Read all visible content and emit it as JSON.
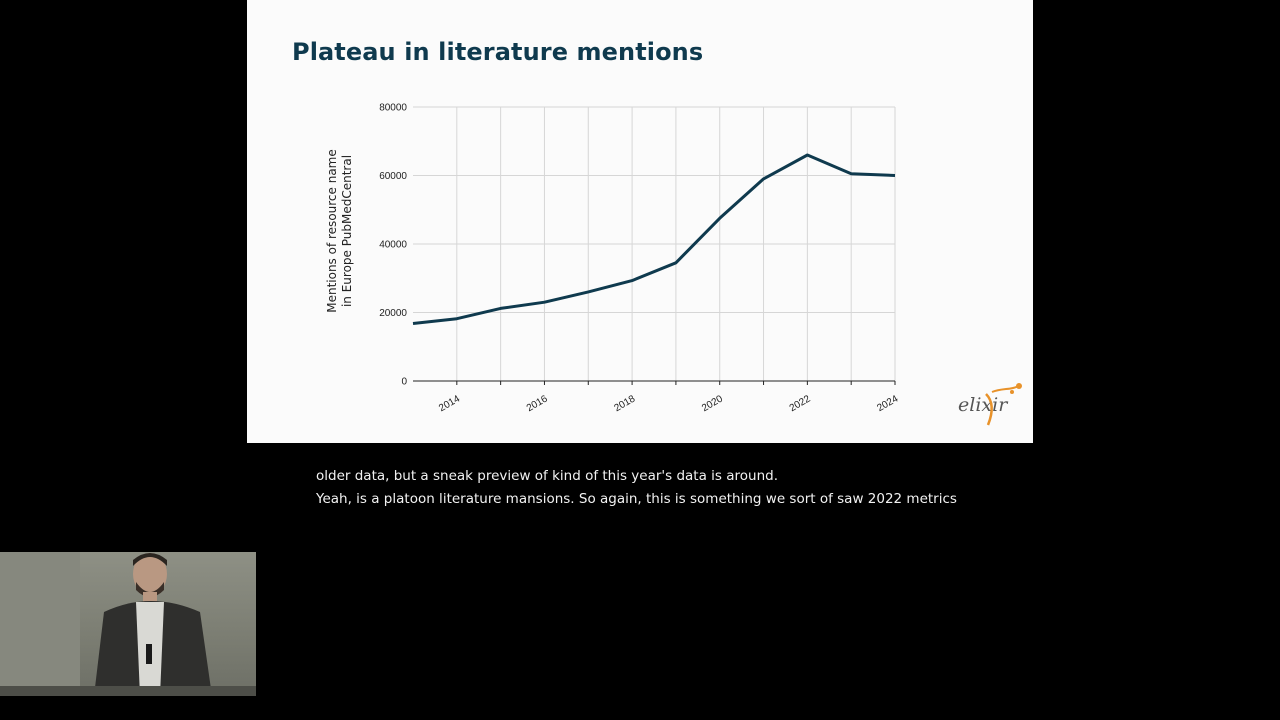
{
  "slide": {
    "title": "Plateau in literature mentions",
    "logo_text": "elixir"
  },
  "chart_data": {
    "type": "line",
    "title": "",
    "xlabel": "",
    "ylabel": "Mentions of resource name in Europe PubMedCentral",
    "ylabel_lines": [
      "Mentions of resource name",
      "in Europe PubMedCentral"
    ],
    "x": [
      2013,
      2014,
      2015,
      2016,
      2017,
      2018,
      2019,
      2020,
      2021,
      2022,
      2023,
      2024
    ],
    "series": [
      {
        "values": [
          16800,
          18200,
          21200,
          23000,
          26000,
          29300,
          34500,
          47500,
          59000,
          66000,
          60500,
          60000
        ]
      }
    ],
    "xticks": [
      "2014",
      "2016",
      "2018",
      "2020",
      "2022",
      "2024"
    ],
    "yticks": [
      "0",
      "20000",
      "40000",
      "60000",
      "80000"
    ],
    "xlim": [
      2013,
      2024
    ],
    "ylim": [
      0,
      80000
    ],
    "grid": true,
    "line_color": "#0f3a4e"
  },
  "captions": {
    "line1": "older data, but a sneak preview of kind of this year's data is around.",
    "line2": "Yeah, is a platoon literature mansions. So again, this is something we sort of saw 2022 metrics"
  }
}
